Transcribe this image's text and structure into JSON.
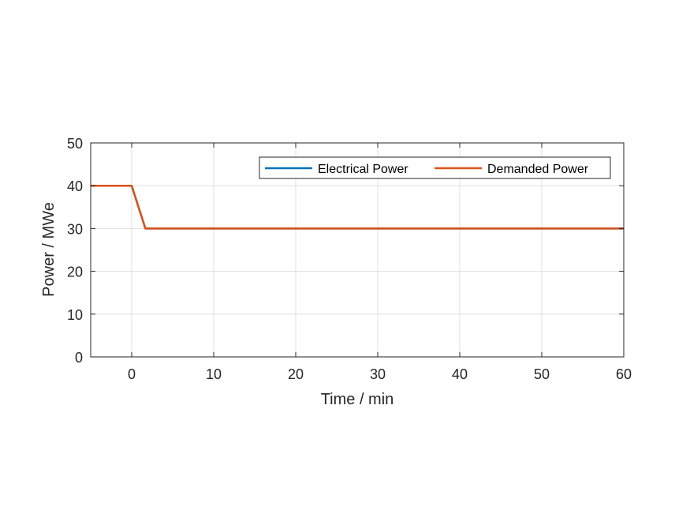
{
  "chart_data": {
    "type": "line",
    "title": "",
    "xlabel": "Time / min",
    "ylabel": "Power / MWe",
    "xlim": [
      -5,
      60
    ],
    "ylim": [
      0,
      50
    ],
    "xticks": [
      0,
      10,
      20,
      30,
      40,
      50,
      60
    ],
    "yticks": [
      0,
      10,
      20,
      30,
      40,
      50
    ],
    "grid": true,
    "legend_position": "top-right",
    "series": [
      {
        "name": "Electrical Power",
        "color": "#0072BD",
        "x": [
          -5,
          0,
          1.67,
          60
        ],
        "y": [
          40,
          40,
          30,
          30
        ]
      },
      {
        "name": "Demanded Power",
        "color": "#D95319",
        "x": [
          -5,
          0,
          1.67,
          60
        ],
        "y": [
          40,
          40,
          30,
          30
        ]
      }
    ]
  }
}
